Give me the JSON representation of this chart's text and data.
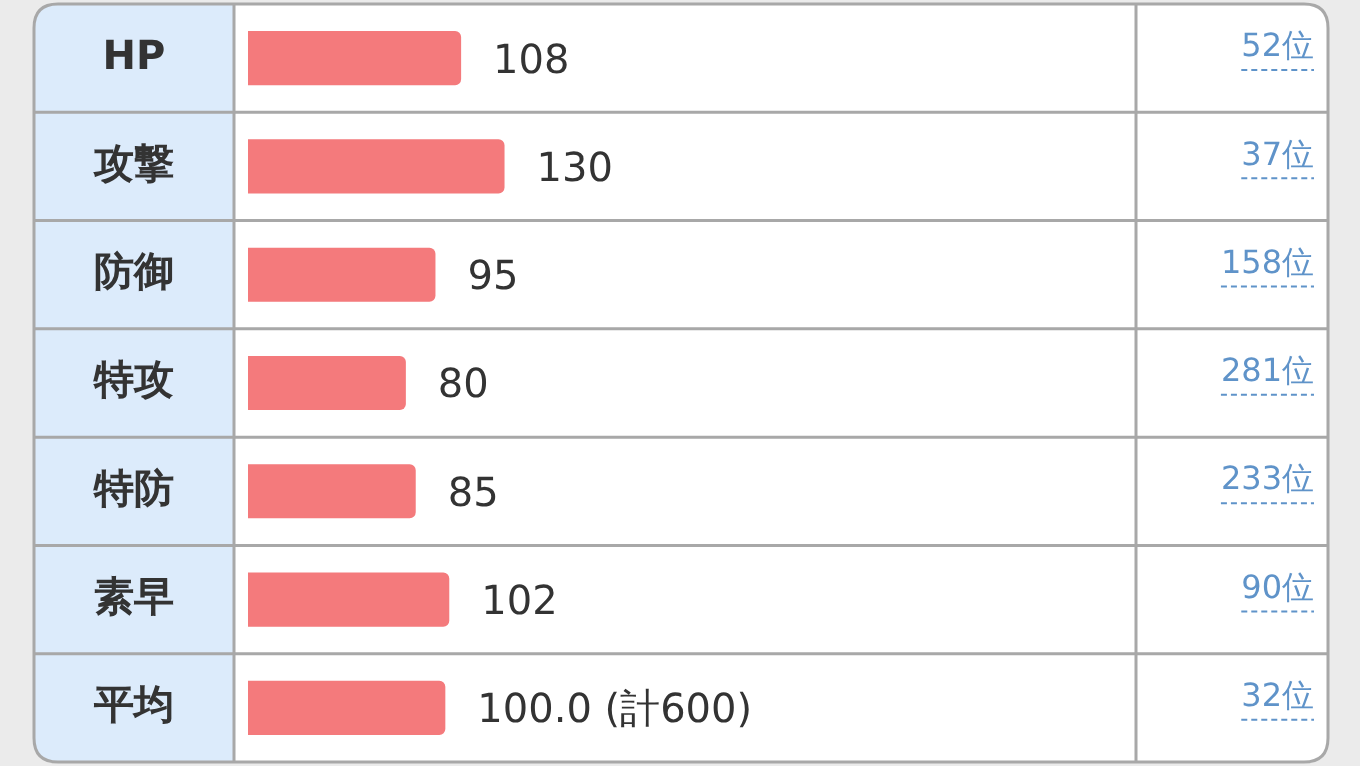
{
  "chart_data": {
    "type": "bar",
    "orientation": "horizontal",
    "categories": [
      "HP",
      "攻撃",
      "防御",
      "特攻",
      "特防",
      "素早",
      "平均"
    ],
    "values": [
      108,
      130,
      95,
      80,
      85,
      102,
      100
    ],
    "value_labels": [
      "108",
      "130",
      "95",
      "80",
      "85",
      "102",
      "100.0 (計600)"
    ],
    "color": "#f47a7c",
    "xlim": [
      0,
      450
    ],
    "tick_labels": "y",
    "grid": false,
    "legend": false,
    "annotations": [
      "52位",
      "37位",
      "158位",
      "281位",
      "233位",
      "90位",
      "32位"
    ]
  }
}
